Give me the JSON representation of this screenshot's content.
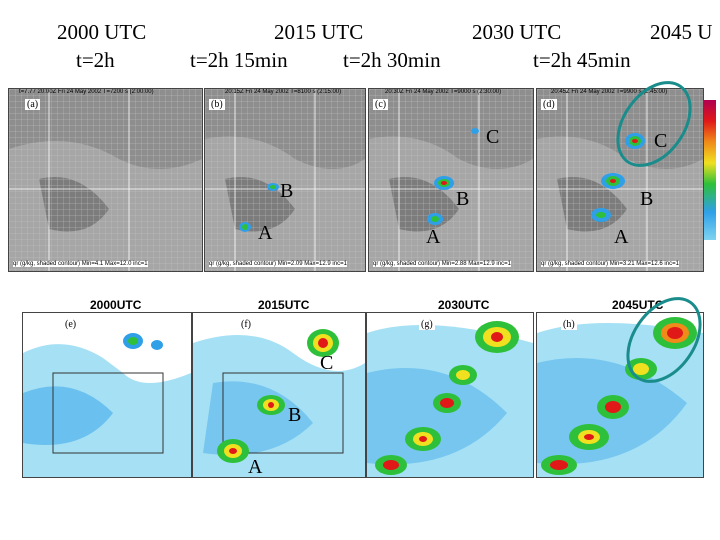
{
  "headers": [
    {
      "time": "2000 UTC",
      "elapsed": "t=2h"
    },
    {
      "time": "2015 UTC",
      "elapsed": "t=2h 15min"
    },
    {
      "time": "2030 UTC",
      "elapsed": "t=2h 30min"
    },
    {
      "time": "2045 U",
      "elapsed": "t=2h 45min"
    }
  ],
  "sim_panels": [
    {
      "label": "(a)",
      "header_text": "t=7.77 20:00Z Fri 24 May 2002 T=7200 s (2:00:00)",
      "footer_text": "qr (g/kg, shaded contour) Min=4.1 Max=12.0 inc=1"
    },
    {
      "label": "(b)",
      "header_text": "20:15Z Fri 24 May 2002 T=8100 s (2:15:00)",
      "footer_text": "qr (g/kg, shaded contour) Min=2.09 Max=12.9 inc=1"
    },
    {
      "label": "(c)",
      "header_text": "20:30Z Fri 24 May 2002 T=9000 s (2:30:00)",
      "footer_text": "qr (g/kg, shaded contour) Min=2.88 Max=12.9 inc=1"
    },
    {
      "label": "(d)",
      "header_text": "20:45Z Fri 24 May 2002 T=9900 s (2:45:00)",
      "footer_text": "qr (g/kg, shaded contour) Min=3.21 Max=12.6 inc=1"
    }
  ],
  "radar_panels": [
    {
      "title": "2000UTC",
      "label": "(e)"
    },
    {
      "title": "2015UTC",
      "label": "(f)"
    },
    {
      "title": "2030UTC",
      "label": "(g)"
    },
    {
      "title": "2045UTC",
      "label": "(h)"
    }
  ],
  "cell_labels": {
    "a": "A",
    "b": "B",
    "c": "C"
  },
  "colors": {
    "circle": "#1a8c8c",
    "reflectivity": [
      "#7fd3f0",
      "#2fa0e8",
      "#2ec03a",
      "#f0e020",
      "#f08a18",
      "#e01818",
      "#b00050"
    ]
  }
}
